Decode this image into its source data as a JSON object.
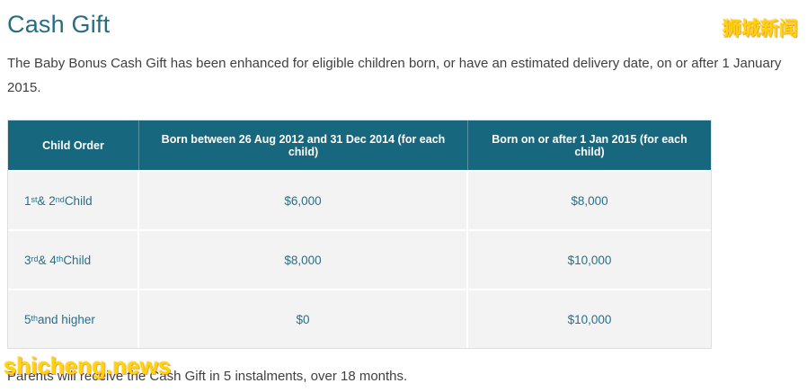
{
  "page": {
    "title": "Cash Gift",
    "intro": "The Baby Bonus Cash Gift has been enhanced for eligible children born, or have an estimated delivery date, on or after 1 January 2015.",
    "footer": "Parents will receive the Cash Gift in 5 instalments, over 18 months."
  },
  "watermarks": {
    "top_right": "狮城新闻",
    "bottom_left": "shicheng.news"
  },
  "table": {
    "headers": [
      "Child Order",
      "Born between 26 Aug 2012 and 31 Dec 2014 (for each child)",
      "Born on or after 1 Jan 2015 (for each child)"
    ],
    "rows": [
      {
        "order_parts": [
          {
            "text": "1"
          },
          {
            "text": "st",
            "sup": true
          },
          {
            "text": " & 2"
          },
          {
            "text": "nd",
            "sup": true
          },
          {
            "text": " Child"
          }
        ],
        "amount_2012_2014": "$6,000",
        "amount_2015": "$8,000"
      },
      {
        "order_parts": [
          {
            "text": "3"
          },
          {
            "text": "rd",
            "sup": true
          },
          {
            "text": " & 4"
          },
          {
            "text": "th",
            "sup": true
          },
          {
            "text": " Child"
          }
        ],
        "amount_2012_2014": "$8,000",
        "amount_2015": "$10,000"
      },
      {
        "order_parts": [
          {
            "text": "5"
          },
          {
            "text": "th",
            "sup": true
          },
          {
            "text": " and higher"
          }
        ],
        "amount_2012_2014": "$0",
        "amount_2015": "$10,000"
      }
    ]
  },
  "colors": {
    "accent_teal": "#266d84",
    "header_bg": "#17687f",
    "cell_text": "#26708a",
    "row_bg": "#f3f3f3",
    "watermark_yellow": "#ffd400"
  }
}
